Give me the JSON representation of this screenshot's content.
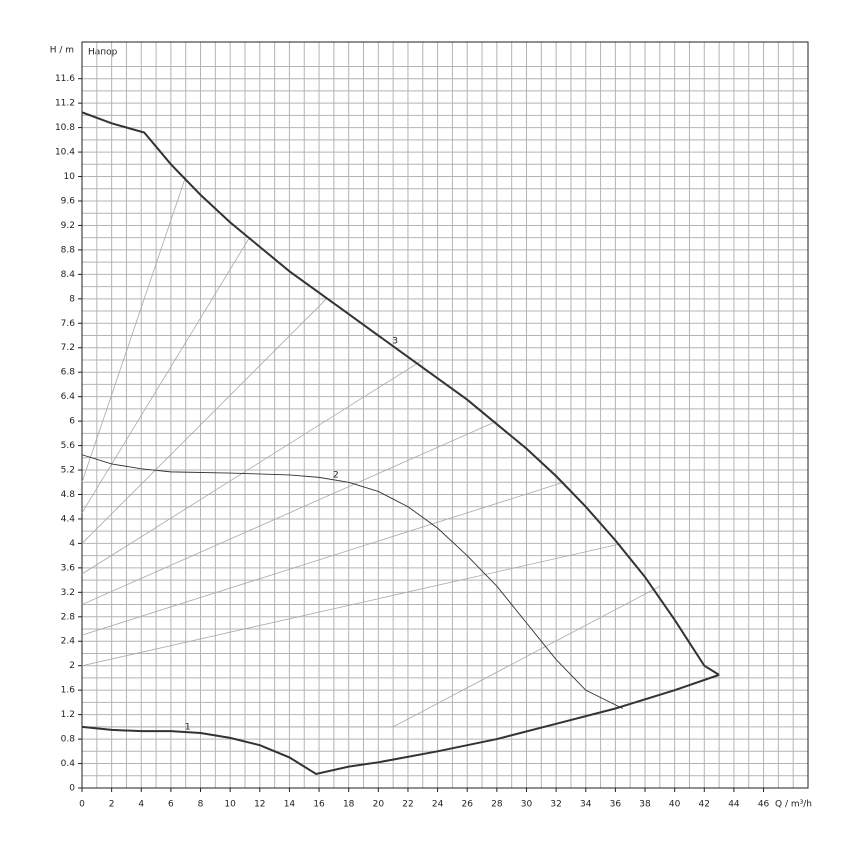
{
  "chart_data": {
    "type": "line",
    "subtitle": "Напор",
    "x_label": "Q / m³/h",
    "y_label": "H / m",
    "xlim": [
      0,
      49
    ],
    "ylim": [
      0,
      12.2
    ],
    "xticks": [
      0,
      2,
      4,
      6,
      8,
      10,
      12,
      14,
      16,
      18,
      20,
      22,
      24,
      26,
      28,
      30,
      32,
      34,
      36,
      38,
      40,
      42,
      44,
      46
    ],
    "yticks": [
      0,
      0.4,
      0.8,
      1.2,
      1.6,
      2,
      2.4,
      2.8,
      3.2,
      3.6,
      4,
      4.4,
      4.8,
      5.2,
      5.6,
      6,
      6.4,
      6.8,
      7.2,
      7.6,
      8,
      8.4,
      8.8,
      9.2,
      9.6,
      10,
      10.4,
      10.8,
      11.2,
      11.6
    ],
    "grid": true,
    "series": [
      {
        "name": "3",
        "color": "#333333",
        "x": [
          0,
          2,
          4.2,
          6,
          8,
          10,
          12,
          14,
          16,
          18,
          20,
          22,
          24,
          26,
          28,
          30,
          32,
          34,
          36,
          38,
          40,
          42,
          43
        ],
        "values": [
          11.05,
          10.87,
          10.72,
          10.2,
          9.7,
          9.25,
          8.85,
          8.45,
          8.1,
          7.75,
          7.4,
          7.05,
          6.7,
          6.35,
          5.95,
          5.55,
          5.1,
          4.6,
          4.05,
          3.45,
          2.75,
          2.0,
          1.85
        ]
      },
      {
        "name": "2",
        "color": "#333333",
        "x": [
          0,
          2,
          4,
          6,
          10,
          14,
          16,
          18,
          20,
          22,
          24,
          26,
          28,
          30,
          32,
          34,
          36.5
        ],
        "values": [
          5.45,
          5.3,
          5.22,
          5.17,
          5.15,
          5.12,
          5.08,
          5.0,
          4.85,
          4.6,
          4.25,
          3.8,
          3.3,
          2.7,
          2.1,
          1.6,
          1.3
        ]
      },
      {
        "name": "1",
        "color": "#333333",
        "x": [
          0,
          2,
          4,
          6,
          8,
          10,
          12,
          14,
          15.8,
          18,
          20,
          24,
          28,
          32,
          36,
          40,
          43
        ],
        "values": [
          1.0,
          0.95,
          0.93,
          0.93,
          0.9,
          0.82,
          0.7,
          0.5,
          0.23,
          0.35,
          0.42,
          0.6,
          0.8,
          1.05,
          1.3,
          1.6,
          1.85
        ]
      }
    ],
    "system_lines": {
      "color": "#a8a8a8",
      "lines": [
        {
          "x": [
            0,
            7
          ],
          "values": [
            5.0,
            10.0
          ]
        },
        {
          "x": [
            0,
            11.3
          ],
          "values": [
            4.5,
            9.0
          ]
        },
        {
          "x": [
            0,
            16.5
          ],
          "values": [
            4.0,
            8.0
          ]
        },
        {
          "x": [
            0,
            23
          ],
          "values": [
            3.5,
            7.0
          ]
        },
        {
          "x": [
            0,
            28
          ],
          "values": [
            3.0,
            6.0
          ]
        },
        {
          "x": [
            0,
            32.5
          ],
          "values": [
            2.5,
            5.0
          ]
        },
        {
          "x": [
            0,
            36.5
          ],
          "values": [
            2.0,
            4.0
          ]
        },
        {
          "x": [
            0,
            21,
            39
          ],
          "values": [
            1.0,
            1.0,
            3.3
          ]
        }
      ]
    }
  }
}
